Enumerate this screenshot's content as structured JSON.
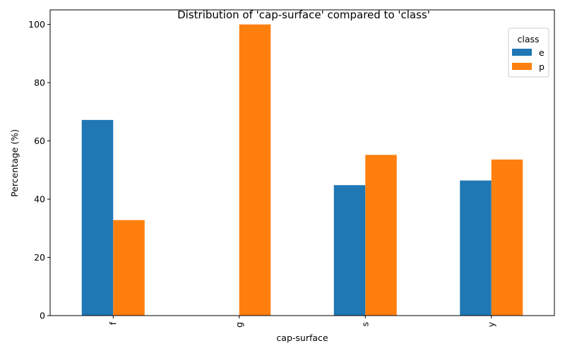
{
  "chart_data": {
    "type": "bar",
    "title": "Distribution of 'cap-surface' compared to 'class'",
    "xlabel": "cap-surface",
    "ylabel": "Percentage (%)",
    "categories": [
      "f",
      "g",
      "s",
      "y"
    ],
    "series": [
      {
        "name": "e",
        "color": "#1f77b4",
        "values": [
          67.2,
          0,
          44.8,
          46.4
        ]
      },
      {
        "name": "p",
        "color": "#ff7f0e",
        "values": [
          32.8,
          100,
          55.2,
          53.6
        ]
      }
    ],
    "ylim": [
      0,
      105
    ],
    "yticks": [
      0,
      20,
      40,
      60,
      80,
      100
    ],
    "grid": false,
    "legend": {
      "title": "class",
      "position": "top-right"
    }
  }
}
